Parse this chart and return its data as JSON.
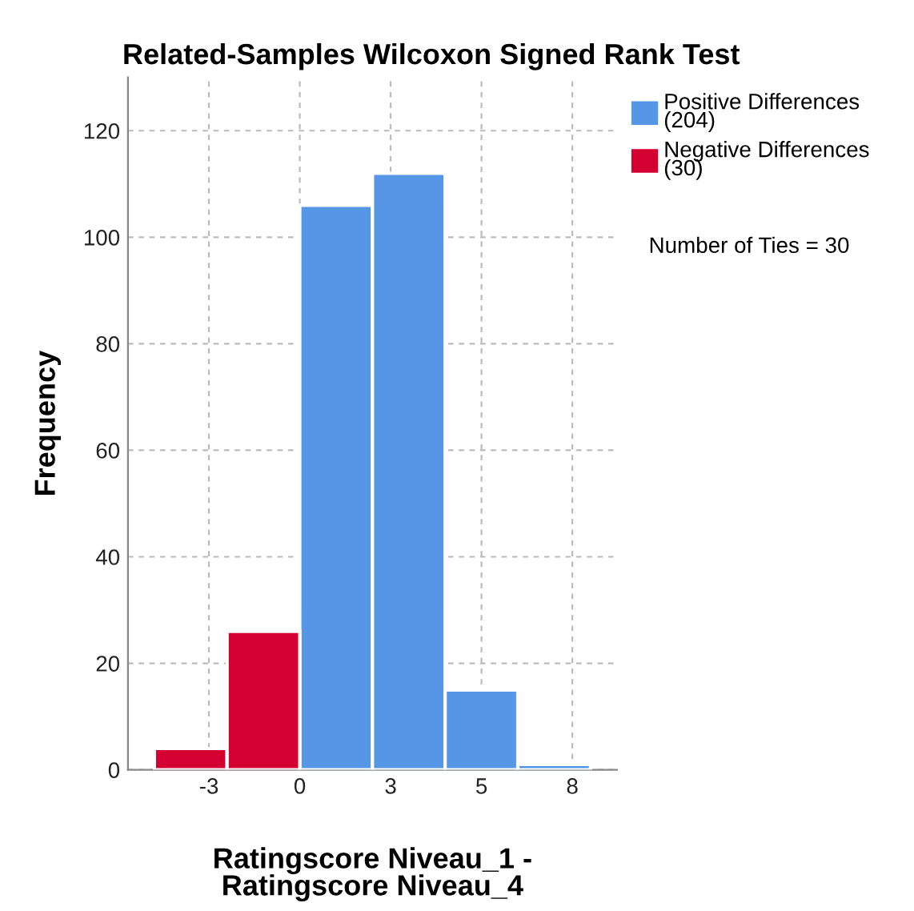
{
  "chart_data": {
    "type": "histogram",
    "title": "Related-Samples Wilcoxon Signed Rank Test",
    "xlabel": "Ratingscore Niveau_1 -\nRatingscore Niveau_4",
    "ylabel": "Frequency",
    "bins": [
      -4.4,
      -2.2,
      0,
      2.2,
      4.4,
      6.6,
      8.8
    ],
    "series": [
      {
        "name": "Positive Differences\n(204)",
        "color": "#5596e6",
        "values": [
          null,
          null,
          106,
          112,
          15,
          1
        ]
      },
      {
        "name": "Negative Differences\n(30)",
        "color": "#d50032",
        "values": [
          4,
          26,
          null,
          null,
          null,
          null
        ]
      }
    ],
    "annotations": [
      "Number of Ties = 30"
    ],
    "xlim": [
      -5.2,
      9.6
    ],
    "ylim": [
      0,
      130
    ],
    "xticks": [
      {
        "value": -2.75,
        "label": "-3"
      },
      {
        "value": 0,
        "label": "0"
      },
      {
        "value": 2.75,
        "label": "3"
      },
      {
        "value": 5.5,
        "label": "5"
      },
      {
        "value": 8.25,
        "label": "8"
      }
    ],
    "yticks": [
      0,
      20,
      40,
      60,
      80,
      100,
      120
    ],
    "grid": true,
    "legend": "top right"
  }
}
